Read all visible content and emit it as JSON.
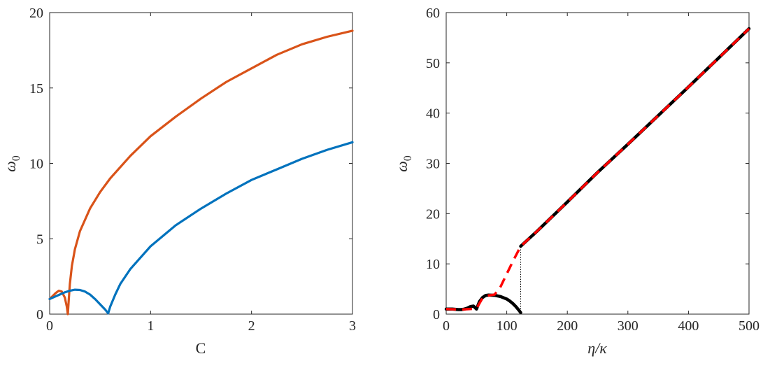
{
  "chart_data": [
    {
      "type": "line",
      "xlabel": "C",
      "ylabel": "ω",
      "ylabel_sub": "0",
      "xlim": [
        0,
        3
      ],
      "ylim": [
        0,
        20
      ],
      "xticks": [
        0,
        1,
        2,
        3
      ],
      "xtick_labels": [
        "0",
        "1",
        "2",
        "3"
      ],
      "yticks": [
        0,
        5,
        10,
        15,
        20
      ],
      "ytick_labels": [
        "0",
        "5",
        "10",
        "15",
        "20"
      ],
      "grid": false,
      "series": [
        {
          "color": "#D95319",
          "style": "solid",
          "x": [
            0,
            0.03,
            0.06,
            0.09,
            0.12,
            0.15,
            0.17,
            0.18,
            0.19,
            0.2,
            0.22,
            0.25,
            0.3,
            0.4,
            0.5,
            0.6,
            0.8,
            1.0,
            1.25,
            1.5,
            1.75,
            2.0,
            2.25,
            2.5,
            2.75,
            3.0
          ],
          "y": [
            1.0,
            1.2,
            1.4,
            1.55,
            1.5,
            1.1,
            0.5,
            0.0,
            1.0,
            2.0,
            3.2,
            4.3,
            5.5,
            7.0,
            8.1,
            9.0,
            10.5,
            11.8,
            13.1,
            14.3,
            15.4,
            16.3,
            17.2,
            17.9,
            18.4,
            18.8
          ]
        },
        {
          "color": "#0072BD",
          "style": "solid",
          "x": [
            0,
            0.05,
            0.1,
            0.15,
            0.2,
            0.25,
            0.3,
            0.35,
            0.4,
            0.45,
            0.5,
            0.55,
            0.58,
            0.6,
            0.65,
            0.7,
            0.8,
            1.0,
            1.25,
            1.5,
            1.75,
            2.0,
            2.25,
            2.5,
            2.75,
            3.0
          ],
          "y": [
            1.0,
            1.15,
            1.3,
            1.45,
            1.55,
            1.62,
            1.6,
            1.5,
            1.3,
            1.0,
            0.65,
            0.3,
            0.05,
            0.5,
            1.3,
            2.0,
            3.0,
            4.5,
            5.9,
            7.0,
            8.0,
            8.9,
            9.6,
            10.3,
            10.9,
            11.4
          ]
        }
      ]
    },
    {
      "type": "line",
      "xlabel": "η/κ",
      "ylabel": "ω",
      "ylabel_sub": "0",
      "xlim": [
        0,
        500
      ],
      "ylim": [
        0,
        60
      ],
      "xticks": [
        0,
        100,
        200,
        300,
        400,
        500
      ],
      "xtick_labels": [
        "0",
        "100",
        "200",
        "300",
        "400",
        "500"
      ],
      "yticks": [
        0,
        10,
        20,
        30,
        40,
        50,
        60
      ],
      "ytick_labels": [
        "0",
        "10",
        "20",
        "30",
        "40",
        "50",
        "60"
      ],
      "grid": false,
      "series": [
        {
          "color": "#000000",
          "style": "solid",
          "x": [
            0,
            10,
            20,
            25,
            30,
            35,
            40,
            45,
            50,
            55,
            60,
            65,
            70,
            80,
            90,
            100,
            105,
            110,
            115,
            120,
            123
          ],
          "y": [
            1.0,
            1.0,
            0.9,
            0.9,
            1.0,
            1.2,
            1.5,
            1.6,
            1.0,
            2.5,
            3.3,
            3.7,
            3.8,
            3.75,
            3.5,
            3.0,
            2.6,
            2.1,
            1.5,
            0.8,
            0.3
          ]
        },
        {
          "color": "#000000",
          "style": "solid",
          "x": [
            123,
            150,
            200,
            250,
            300,
            350,
            400,
            450,
            500
          ],
          "y": [
            13.5,
            16.5,
            22.3,
            28.2,
            33.8,
            39.5,
            45.2,
            51.0,
            56.8
          ]
        },
        {
          "color": "#FF0000",
          "style": "dashed",
          "x": [
            0,
            25,
            50,
            60,
            70,
            80,
            90,
            100,
            110,
            123,
            150,
            200,
            250,
            300,
            350,
            400,
            450,
            500
          ],
          "y": [
            1.0,
            0.9,
            1.1,
            3.2,
            3.7,
            3.9,
            5.5,
            8.0,
            10.5,
            13.5,
            16.5,
            22.3,
            28.2,
            33.8,
            39.5,
            45.2,
            51.0,
            56.8
          ]
        },
        {
          "color": "#000000",
          "style": "dotted",
          "x": [
            123,
            123
          ],
          "y": [
            0,
            13.5
          ]
        }
      ]
    }
  ]
}
